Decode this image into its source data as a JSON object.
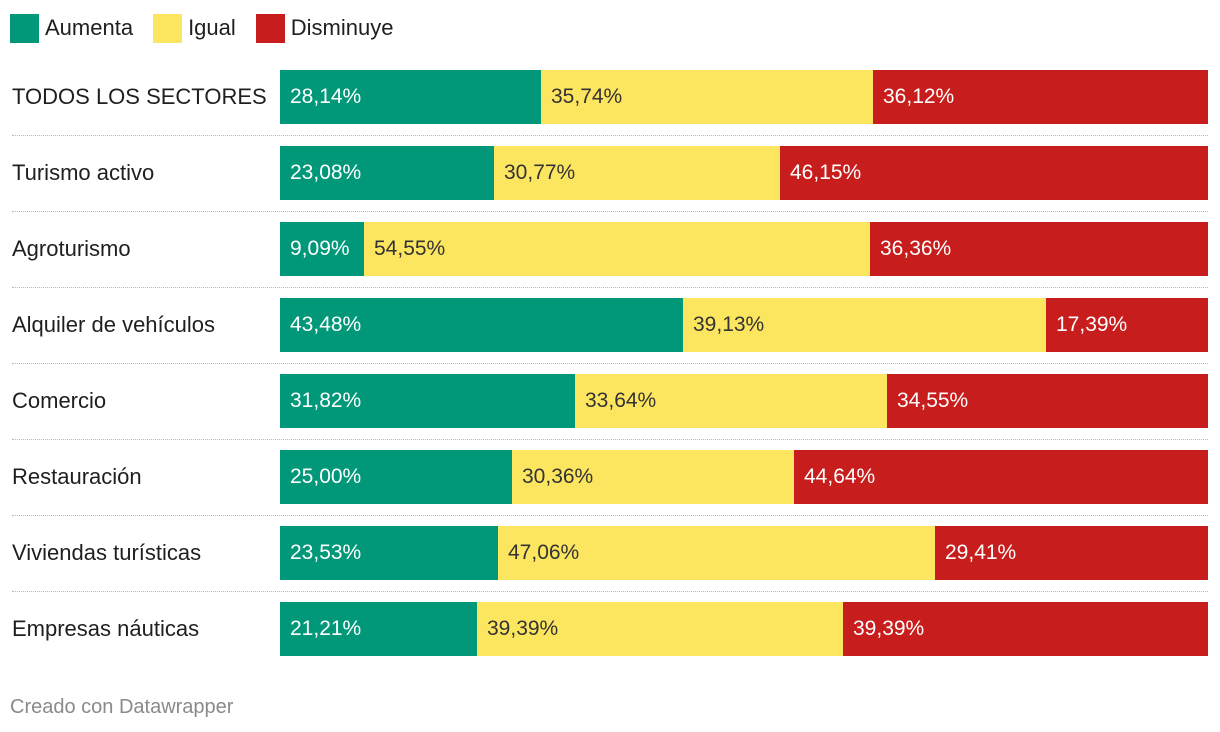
{
  "legend": [
    {
      "label": "Aumenta",
      "color": "#009879"
    },
    {
      "label": "Igual",
      "color": "#fde65f"
    },
    {
      "label": "Disminuye",
      "color": "#c71e1d"
    }
  ],
  "footer": "Creado con Datawrapper",
  "chart_data": {
    "type": "bar",
    "orientation": "horizontal",
    "stacked": "100%",
    "categories": [
      "TODOS LOS SECTORES",
      "Turismo activo",
      "Agroturismo",
      "Alquiler de vehículos",
      "Comercio",
      "Restauración",
      "Viviendas turísticas",
      "Empresas náuticas"
    ],
    "series": [
      {
        "name": "Aumenta",
        "color": "#009879",
        "values": [
          28.14,
          23.08,
          9.09,
          43.48,
          31.82,
          25.0,
          23.53,
          21.21
        ],
        "labels": [
          "28,14%",
          "23,08%",
          "9,09%",
          "43,48%",
          "31,82%",
          "25,00%",
          "23,53%",
          "21,21%"
        ]
      },
      {
        "name": "Igual",
        "color": "#fde65f",
        "values": [
          35.74,
          30.77,
          54.55,
          39.13,
          33.64,
          30.36,
          47.06,
          39.39
        ],
        "labels": [
          "35,74%",
          "30,77%",
          "54,55%",
          "39,13%",
          "33,64%",
          "30,36%",
          "47,06%",
          "39,39%"
        ]
      },
      {
        "name": "Disminuye",
        "color": "#c71e1d",
        "values": [
          36.12,
          46.15,
          36.36,
          17.39,
          34.55,
          44.64,
          29.41,
          39.39
        ],
        "labels": [
          "36,12%",
          "46,15%",
          "36,36%",
          "17,39%",
          "34,55%",
          "44,64%",
          "29,41%",
          "39,39%"
        ]
      }
    ],
    "title": "",
    "xlabel": "",
    "ylabel": "",
    "xlim": [
      0,
      100
    ],
    "grid": false,
    "legend_position": "top-left"
  }
}
